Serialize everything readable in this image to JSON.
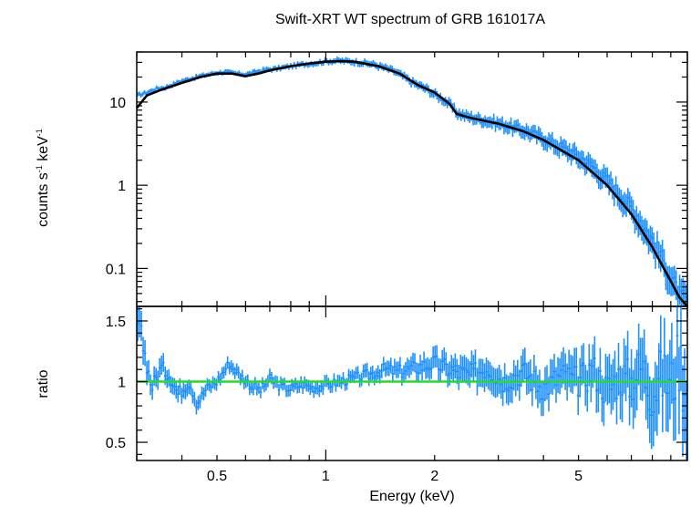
{
  "chart_data": [
    {
      "type": "line",
      "panel": "spectrum",
      "title": "Swift-XRT WT spectrum of GRB 161017A",
      "ylabel_main": "counts s",
      "ylabel_sup1": "-1",
      "ylabel_mid": " keV",
      "ylabel_sup2": "-1",
      "xscale": "log",
      "yscale": "log",
      "xlim": [
        0.3,
        10
      ],
      "ylim": [
        0.035,
        40
      ],
      "ytick_labels": [
        {
          "value": 10,
          "label": "10"
        },
        {
          "value": 1,
          "label": "1"
        },
        {
          "value": 0.1,
          "label": "0.1"
        }
      ],
      "series": [
        {
          "name": "model",
          "color": "#000000",
          "x": [
            0.3,
            0.32,
            0.35,
            0.4,
            0.45,
            0.5,
            0.55,
            0.6,
            0.65,
            0.7,
            0.8,
            0.9,
            1.0,
            1.1,
            1.2,
            1.4,
            1.6,
            1.8,
            2.0,
            2.2,
            2.3,
            2.5,
            3.0,
            3.5,
            4.0,
            5.0,
            6.0,
            7.0,
            8.0,
            9.0,
            9.5,
            10.0
          ],
          "y": [
            8.5,
            12,
            14,
            17,
            20,
            22,
            22,
            20.5,
            22,
            24,
            27,
            29,
            30.5,
            31,
            30.5,
            27,
            22,
            16,
            13,
            9.5,
            7.2,
            6.5,
            5.5,
            4.5,
            3.5,
            2.0,
            1.0,
            0.45,
            0.18,
            0.07,
            0.045,
            0.035
          ]
        },
        {
          "name": "data",
          "color": "#1e90ff",
          "x": [
            0.3,
            0.32,
            0.34,
            0.36,
            0.38,
            0.4,
            0.43,
            0.46,
            0.5,
            0.53,
            0.56,
            0.6,
            0.64,
            0.68,
            0.72,
            0.78,
            0.84,
            0.9,
            0.96,
            1.0,
            1.08,
            1.16,
            1.25,
            1.35,
            1.45,
            1.55,
            1.65,
            1.75,
            1.9,
            2.0,
            2.1,
            2.2,
            2.3,
            2.45,
            2.6,
            2.8,
            3.0,
            3.3,
            3.6,
            4.0,
            4.4,
            4.8,
            5.2,
            5.6,
            6.0,
            6.5,
            7.0,
            7.5,
            8.0,
            8.5,
            9.0,
            9.5,
            10.0
          ],
          "y": [
            12,
            13,
            14.5,
            15,
            16.5,
            18,
            19.5,
            21,
            22.5,
            23,
            22,
            21.5,
            23,
            24.5,
            25,
            26.5,
            28,
            29,
            30,
            31,
            31.5,
            31,
            30,
            28.5,
            26,
            23.5,
            20,
            17,
            14.5,
            12.5,
            11,
            9.5,
            7.5,
            6.8,
            6.4,
            6.0,
            5.6,
            5.0,
            4.5,
            3.7,
            3.0,
            2.5,
            2.0,
            1.55,
            1.15,
            0.8,
            0.55,
            0.35,
            0.22,
            0.14,
            0.08,
            0.05,
            0.04
          ]
        }
      ]
    },
    {
      "type": "scatter",
      "panel": "ratio",
      "xlabel": "Energy (keV)",
      "ylabel": "ratio",
      "xscale": "log",
      "xlim": [
        0.3,
        10
      ],
      "ylim": [
        0.35,
        1.62
      ],
      "xtick_labels": [
        {
          "value": 0.5,
          "label": "0.5"
        },
        {
          "value": 1,
          "label": "1"
        },
        {
          "value": 2,
          "label": "2"
        },
        {
          "value": 5,
          "label": "5"
        }
      ],
      "ytick_labels": [
        {
          "value": 1.5,
          "label": "1.5"
        },
        {
          "value": 1,
          "label": "1"
        },
        {
          "value": 0.5,
          "label": "0.5"
        }
      ],
      "reference_line": {
        "value": 1.0,
        "color": "#22dd22"
      },
      "series": [
        {
          "name": "ratio",
          "color": "#1e90ff",
          "x": [
            0.3,
            0.31,
            0.33,
            0.35,
            0.37,
            0.39,
            0.42,
            0.44,
            0.47,
            0.5,
            0.54,
            0.58,
            0.62,
            0.66,
            0.7,
            0.75,
            0.8,
            0.86,
            0.92,
            1.0,
            1.1,
            1.2,
            1.3,
            1.45,
            1.6,
            1.8,
            2.0,
            2.2,
            2.5,
            2.8,
            3.1,
            3.5,
            4.0,
            4.5,
            5.0,
            5.5,
            6.0,
            6.5,
            7.0,
            7.5,
            8.0,
            8.5,
            9.0,
            9.5,
            10.0
          ],
          "y": [
            1.5,
            1.35,
            0.95,
            1.12,
            1.05,
            0.9,
            1.0,
            0.82,
            0.95,
            1.0,
            1.15,
            1.05,
            0.97,
            0.93,
            1.02,
            0.96,
            0.94,
            0.98,
            0.95,
            0.97,
            1.0,
            1.03,
            1.05,
            1.1,
            1.08,
            1.12,
            1.15,
            1.1,
            1.05,
            1.12,
            1.0,
            1.08,
            0.95,
            1.05,
            1.0,
            1.1,
            0.92,
            1.05,
            1.0,
            1.12,
            0.9,
            1.05,
            0.95,
            1.2,
            0.85
          ],
          "err": [
            0.15,
            0.12,
            0.08,
            0.08,
            0.07,
            0.07,
            0.06,
            0.06,
            0.05,
            0.05,
            0.05,
            0.05,
            0.05,
            0.05,
            0.05,
            0.05,
            0.05,
            0.05,
            0.05,
            0.05,
            0.05,
            0.05,
            0.06,
            0.06,
            0.07,
            0.08,
            0.09,
            0.1,
            0.11,
            0.12,
            0.12,
            0.13,
            0.14,
            0.15,
            0.16,
            0.18,
            0.2,
            0.22,
            0.24,
            0.26,
            0.28,
            0.3,
            0.33,
            0.36,
            0.4
          ]
        }
      ]
    }
  ]
}
